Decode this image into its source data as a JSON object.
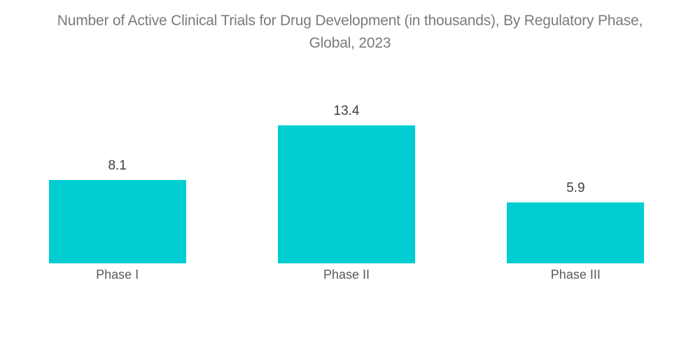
{
  "chart_data": {
    "type": "bar",
    "title": "Number of Active Clinical Trials for Drug Development (in thousands), By Regulatory Phase, Global, 2023",
    "title_lines": [
      "Number of Active Clinical Trials for Drug Development (in thousands), By Regulatory Phase,",
      "Global, 2023"
    ],
    "categories": [
      "Phase I",
      "Phase II",
      "Phase III"
    ],
    "values": [
      8.1,
      13.4,
      5.9
    ],
    "value_labels": [
      "8.1",
      "13.4",
      "5.9"
    ],
    "xlabel": "",
    "ylabel": "",
    "grid": false,
    "legend": false,
    "axes_visible": false,
    "data_labels": true
  },
  "colors": {
    "bar": "#00CDD1",
    "title_text": "#7B7B7B",
    "value_label_text": "#3F3F3F",
    "category_label_text": "#58595B",
    "background": "#FFFFFF"
  }
}
